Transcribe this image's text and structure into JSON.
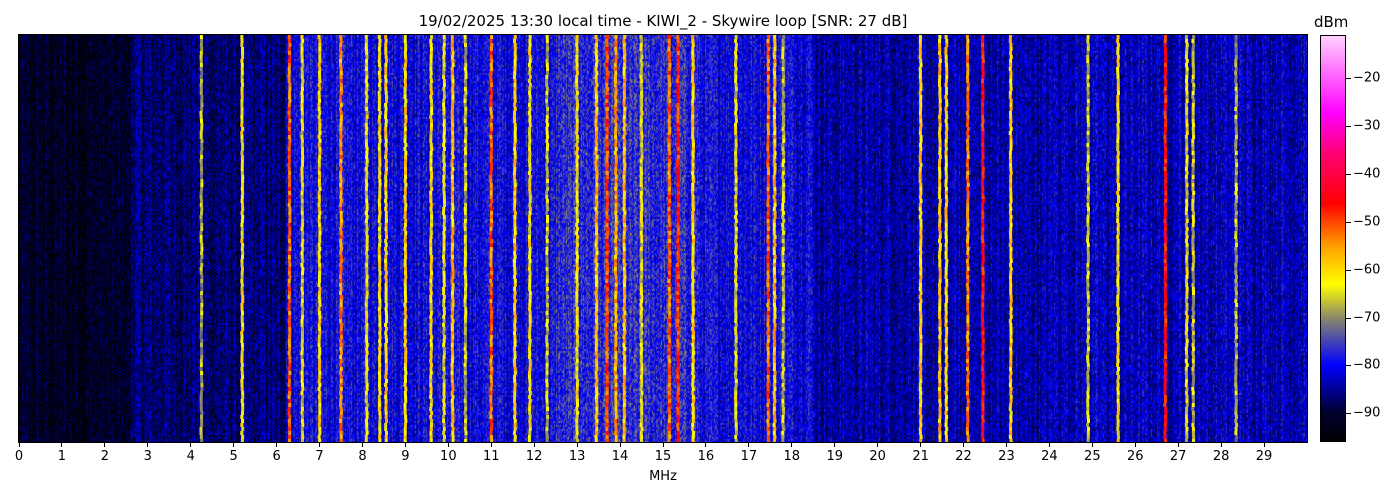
{
  "chart_data": {
    "type": "heatmap",
    "title": "19/02/2025 13:30 local time - KIWI_2 - Skywire loop [SNR: 27 dB]",
    "xlabel": "MHz",
    "ylabel": "",
    "xlim": [
      0,
      30
    ],
    "xticks": [
      "0",
      "1",
      "2",
      "3",
      "4",
      "5",
      "6",
      "7",
      "8",
      "9",
      "10",
      "11",
      "12",
      "13",
      "14",
      "15",
      "16",
      "17",
      "18",
      "19",
      "20",
      "21",
      "22",
      "23",
      "24",
      "25",
      "26",
      "27",
      "28",
      "29"
    ],
    "colorbar": {
      "label": "dBm",
      "range": [
        -96,
        -11
      ],
      "ticks": [
        "−20",
        "−30",
        "−40",
        "−50",
        "−60",
        "−70",
        "−80",
        "−90"
      ],
      "tick_values": [
        -20,
        -30,
        -40,
        -50,
        -60,
        -70,
        -80,
        -90
      ],
      "colormap": [
        {
          "v": -96,
          "c": "#000000"
        },
        {
          "v": -90,
          "c": "#00002e"
        },
        {
          "v": -80,
          "c": "#0000ff"
        },
        {
          "v": -70,
          "c": "#8c8a6a"
        },
        {
          "v": -63,
          "c": "#ffff00"
        },
        {
          "v": -55,
          "c": "#ffa000"
        },
        {
          "v": -46,
          "c": "#ff0000"
        },
        {
          "v": -36,
          "c": "#ff0070"
        },
        {
          "v": -27,
          "c": "#ff00ff"
        },
        {
          "v": -11,
          "c": "#ffd0ff"
        }
      ]
    },
    "noise_floor_dbm": [
      {
        "from": 0,
        "to": 2.6,
        "level": -92
      },
      {
        "from": 2.6,
        "to": 6.2,
        "level": -87
      },
      {
        "from": 6.2,
        "to": 18.5,
        "level": -80
      },
      {
        "from": 18.5,
        "to": 24.0,
        "level": -84
      },
      {
        "from": 24.0,
        "to": 30,
        "level": -83
      }
    ],
    "signals": [
      {
        "mhz": 4.25,
        "dbm": -68
      },
      {
        "mhz": 5.2,
        "dbm": -62
      },
      {
        "mhz": 6.3,
        "dbm": -52
      },
      {
        "mhz": 6.6,
        "dbm": -64
      },
      {
        "mhz": 7.0,
        "dbm": -60
      },
      {
        "mhz": 7.5,
        "dbm": -54
      },
      {
        "mhz": 8.1,
        "dbm": -64
      },
      {
        "mhz": 8.4,
        "dbm": -62
      },
      {
        "mhz": 8.55,
        "dbm": -60
      },
      {
        "mhz": 9.0,
        "dbm": -60
      },
      {
        "mhz": 9.6,
        "dbm": -62
      },
      {
        "mhz": 9.9,
        "dbm": -64
      },
      {
        "mhz": 10.1,
        "dbm": -58
      },
      {
        "mhz": 10.4,
        "dbm": -66
      },
      {
        "mhz": 11.0,
        "dbm": -52
      },
      {
        "mhz": 11.55,
        "dbm": -60
      },
      {
        "mhz": 11.9,
        "dbm": -62
      },
      {
        "mhz": 12.3,
        "dbm": -66
      },
      {
        "mhz": 13.0,
        "dbm": -62
      },
      {
        "mhz": 13.45,
        "dbm": -58
      },
      {
        "mhz": 13.7,
        "dbm": -50
      },
      {
        "mhz": 13.9,
        "dbm": -56
      },
      {
        "mhz": 14.1,
        "dbm": -58
      },
      {
        "mhz": 14.5,
        "dbm": -64
      },
      {
        "mhz": 15.15,
        "dbm": -52
      },
      {
        "mhz": 15.35,
        "dbm": -48
      },
      {
        "mhz": 15.7,
        "dbm": -60
      },
      {
        "mhz": 16.7,
        "dbm": -64
      },
      {
        "mhz": 17.45,
        "dbm": -52
      },
      {
        "mhz": 17.6,
        "dbm": -58
      },
      {
        "mhz": 17.8,
        "dbm": -66
      },
      {
        "mhz": 21.0,
        "dbm": -60
      },
      {
        "mhz": 21.45,
        "dbm": -58
      },
      {
        "mhz": 21.6,
        "dbm": -60
      },
      {
        "mhz": 22.1,
        "dbm": -54
      },
      {
        "mhz": 22.45,
        "dbm": -46
      },
      {
        "mhz": 23.1,
        "dbm": -60
      },
      {
        "mhz": 24.9,
        "dbm": -66
      },
      {
        "mhz": 25.6,
        "dbm": -62
      },
      {
        "mhz": 26.7,
        "dbm": -46
      },
      {
        "mhz": 27.2,
        "dbm": -64
      },
      {
        "mhz": 27.35,
        "dbm": -66
      },
      {
        "mhz": 28.35,
        "dbm": -68
      }
    ]
  }
}
